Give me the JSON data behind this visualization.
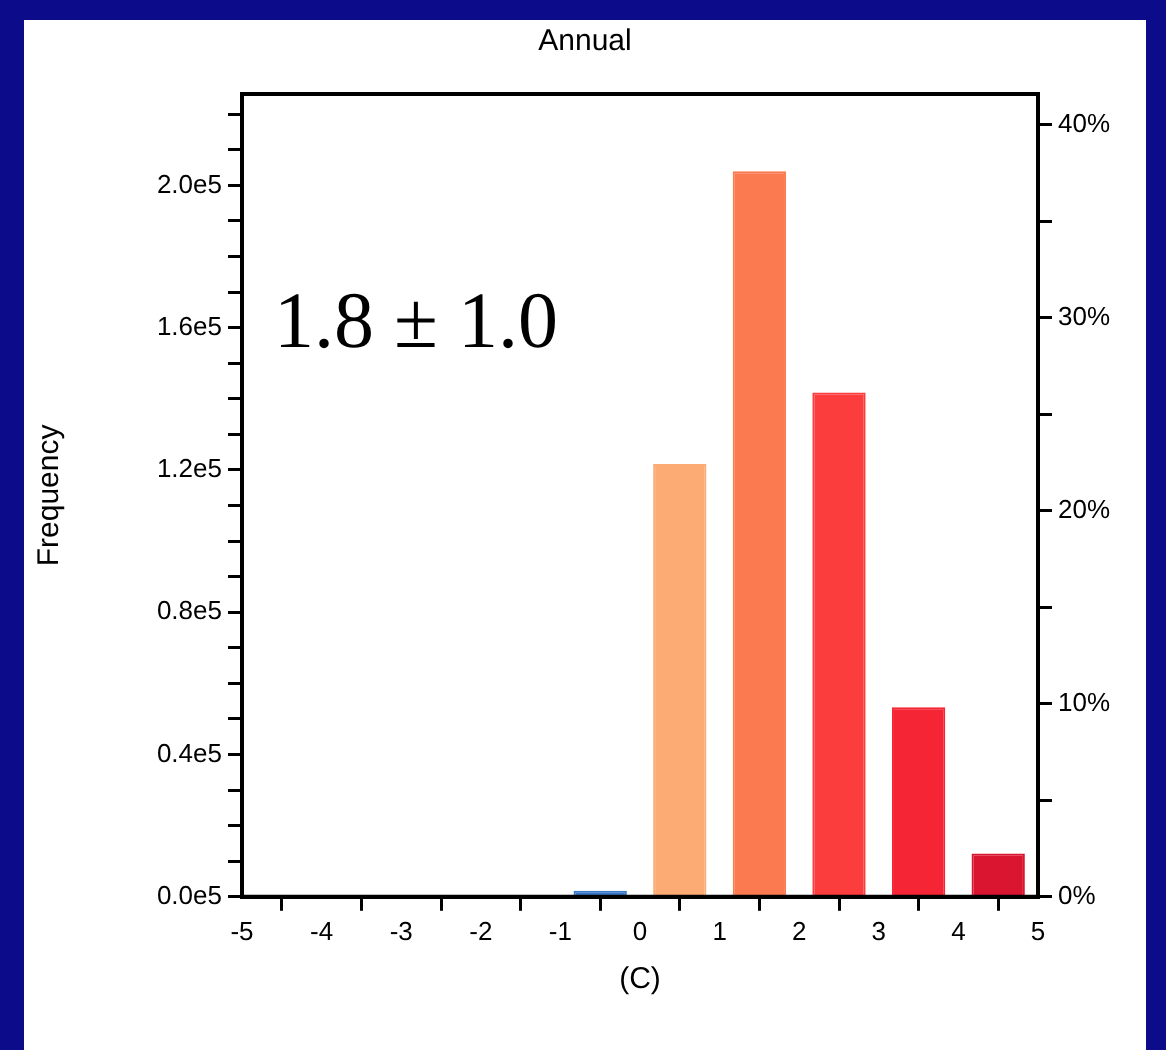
{
  "chart_data": {
    "type": "histogram",
    "title": "Annual",
    "xlabel": "(C)",
    "ylabel": "Frequency",
    "bins": [
      -5,
      -4,
      -3,
      -2,
      -1,
      0,
      1,
      2,
      3,
      4,
      5
    ],
    "values": [
      0,
      0,
      0,
      0,
      1700,
      121700,
      204000,
      141800,
      53300,
      12200
    ],
    "colors": [
      "#3a78c8",
      "#3a78c8",
      "#3a78c8",
      "#3a78c8",
      "#3a78c8",
      "#fcab74",
      "#fc7a50",
      "#fc3d3d",
      "#f52535",
      "#d91530"
    ],
    "xlim": [
      -5,
      5
    ],
    "xticks": [
      -5,
      -4,
      -3,
      -2,
      -1,
      0,
      1,
      2,
      3,
      4,
      5
    ],
    "ylim": [
      0,
      225700
    ],
    "yticks": [
      {
        "value": 0,
        "label": "0.0e5"
      },
      {
        "value": 10000,
        "label": null
      },
      {
        "value": 20000,
        "label": null
      },
      {
        "value": 30000,
        "label": null
      },
      {
        "value": 40000,
        "label": "0.4e5"
      },
      {
        "value": 50000,
        "label": null
      },
      {
        "value": 60000,
        "label": null
      },
      {
        "value": 70000,
        "label": null
      },
      {
        "value": 80000,
        "label": "0.8e5"
      },
      {
        "value": 90000,
        "label": null
      },
      {
        "value": 100000,
        "label": null
      },
      {
        "value": 110000,
        "label": null
      },
      {
        "value": 120000,
        "label": "1.2e5"
      },
      {
        "value": 130000,
        "label": null
      },
      {
        "value": 140000,
        "label": null
      },
      {
        "value": 150000,
        "label": null
      },
      {
        "value": 160000,
        "label": "1.6e5"
      },
      {
        "value": 170000,
        "label": null
      },
      {
        "value": 180000,
        "label": null
      },
      {
        "value": 190000,
        "label": null
      },
      {
        "value": 200000,
        "label": "2.0e5"
      },
      {
        "value": 210000,
        "label": null
      },
      {
        "value": 220000,
        "label": null
      }
    ],
    "y2lim": [
      0,
      41.6
    ],
    "y2ticks": [
      {
        "value": 0,
        "label": "0%"
      },
      {
        "value": 5,
        "label": null
      },
      {
        "value": 10,
        "label": "10%"
      },
      {
        "value": 15,
        "label": null
      },
      {
        "value": 20,
        "label": "20%"
      },
      {
        "value": 25,
        "label": null
      },
      {
        "value": 30,
        "label": "30%"
      },
      {
        "value": 35,
        "label": null
      },
      {
        "value": 40,
        "label": "40%"
      }
    ],
    "annotations": [
      "1.8 ± 1.0"
    ],
    "grid": false,
    "legend": false
  }
}
